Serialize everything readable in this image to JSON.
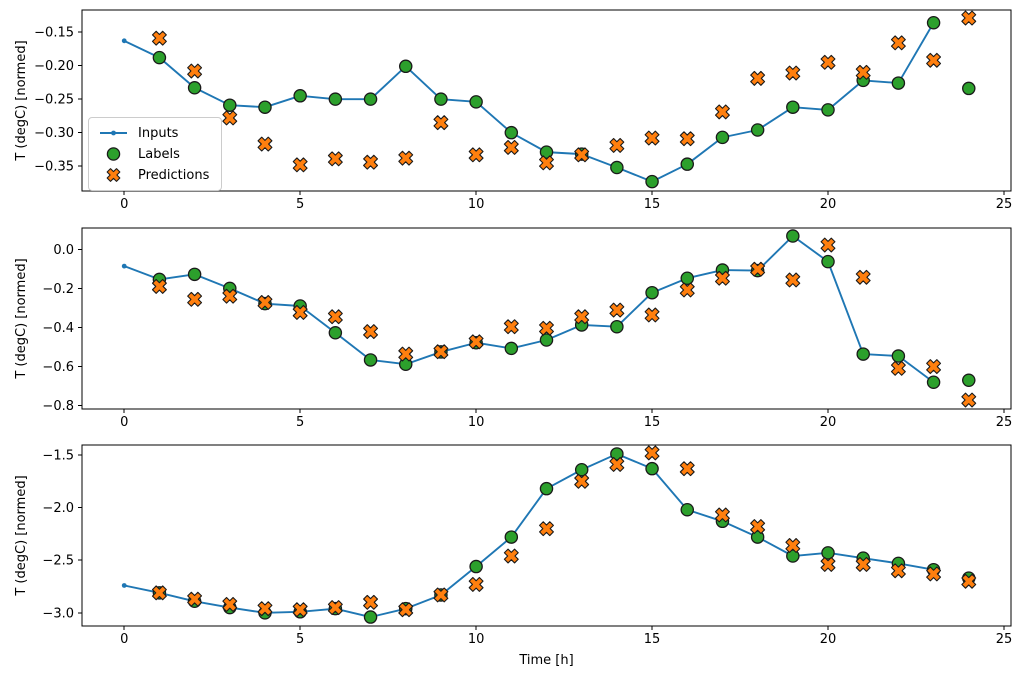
{
  "figure": {
    "background": "#ffffff",
    "xlabel": "Time [h]",
    "ylabel": "T (degC) [normed]"
  },
  "colors": {
    "inputs_line": "#1f77b4",
    "labels_marker": "#2ca02c",
    "predictions_marker": "#ff7f0e",
    "marker_edge": "#1a1a1a",
    "axis": "#000000",
    "text": "#000000",
    "legend_border": "#cccccc"
  },
  "legend": {
    "position": "center-left of subplot 1",
    "items": [
      {
        "label": "Inputs",
        "marker": "line-with-dot-icon"
      },
      {
        "label": "Labels",
        "marker": "green-circle-icon"
      },
      {
        "label": "Predictions",
        "marker": "orange-x-icon"
      }
    ]
  },
  "chart_data": [
    {
      "type": "line",
      "title": "",
      "xlabel": "",
      "ylabel": "T (degC) [normed]",
      "grid": false,
      "xlim": [
        -1.2,
        25.2
      ],
      "ylim": [
        -0.387,
        -0.117
      ],
      "xticks": [
        0,
        5,
        10,
        15,
        20,
        25
      ],
      "xtick_labels": [
        "0",
        "5",
        "10",
        "15",
        "20",
        "25"
      ],
      "yticks": [
        -0.15,
        -0.2,
        -0.25,
        -0.3,
        -0.35
      ],
      "ytick_labels": [
        "−0.15",
        "−0.20",
        "−0.25",
        "−0.30",
        "−0.35"
      ],
      "series": [
        {
          "name": "Inputs",
          "type": "line",
          "marker": "dot",
          "x": [
            0,
            1,
            2,
            3,
            4,
            5,
            6,
            7,
            8,
            9,
            10,
            11,
            12,
            13,
            14,
            15,
            16,
            17,
            18,
            19,
            20,
            21,
            22,
            23
          ],
          "y": [
            -0.163,
            -0.188,
            -0.233,
            -0.259,
            -0.262,
            -0.245,
            -0.25,
            -0.25,
            -0.201,
            -0.25,
            -0.254,
            -0.3,
            -0.329,
            -0.332,
            -0.352,
            -0.373,
            -0.347,
            -0.307,
            -0.296,
            -0.262,
            -0.266,
            -0.222,
            -0.226,
            -0.136
          ]
        },
        {
          "name": "Labels",
          "type": "scatter",
          "marker": "circle",
          "x": [
            1,
            2,
            3,
            4,
            5,
            6,
            7,
            8,
            9,
            10,
            11,
            12,
            13,
            14,
            15,
            16,
            17,
            18,
            19,
            20,
            21,
            22,
            23,
            24
          ],
          "y": [
            -0.188,
            -0.233,
            -0.259,
            -0.262,
            -0.245,
            -0.25,
            -0.25,
            -0.201,
            -0.25,
            -0.254,
            -0.3,
            -0.329,
            -0.332,
            -0.352,
            -0.373,
            -0.347,
            -0.307,
            -0.296,
            -0.262,
            -0.266,
            -0.222,
            -0.226,
            -0.136,
            -0.234
          ]
        },
        {
          "name": "Predictions",
          "type": "scatter",
          "marker": "X",
          "x": [
            1,
            2,
            3,
            4,
            5,
            6,
            7,
            8,
            9,
            10,
            11,
            12,
            13,
            14,
            15,
            16,
            17,
            18,
            19,
            20,
            21,
            22,
            23,
            24
          ],
          "y": [
            -0.159,
            -0.208,
            -0.278,
            -0.317,
            -0.348,
            -0.339,
            -0.344,
            -0.338,
            -0.285,
            -0.333,
            -0.322,
            -0.345,
            -0.333,
            -0.319,
            -0.308,
            -0.309,
            -0.269,
            -0.219,
            -0.211,
            -0.195,
            -0.21,
            -0.166,
            -0.192,
            -0.129
          ]
        }
      ]
    },
    {
      "type": "line",
      "title": "",
      "xlabel": "",
      "ylabel": "T (degC) [normed]",
      "grid": false,
      "xlim": [
        -1.2,
        25.2
      ],
      "ylim": [
        -0.817,
        0.109
      ],
      "xticks": [
        0,
        5,
        10,
        15,
        20,
        25
      ],
      "xtick_labels": [
        "0",
        "5",
        "10",
        "15",
        "20",
        "25"
      ],
      "yticks": [
        0.0,
        -0.2,
        -0.4,
        -0.6,
        -0.8
      ],
      "ytick_labels": [
        "0.0",
        "−0.2",
        "−0.4",
        "−0.6",
        "−0.8"
      ],
      "series": [
        {
          "name": "Inputs",
          "type": "line",
          "marker": "dot",
          "x": [
            0,
            1,
            2,
            3,
            4,
            5,
            6,
            7,
            8,
            9,
            10,
            11,
            12,
            13,
            14,
            15,
            16,
            17,
            18,
            19,
            20,
            21,
            22,
            23
          ],
          "y": [
            -0.086,
            -0.154,
            -0.128,
            -0.2,
            -0.278,
            -0.29,
            -0.427,
            -0.566,
            -0.588,
            -0.525,
            -0.478,
            -0.507,
            -0.464,
            -0.387,
            -0.396,
            -0.222,
            -0.148,
            -0.106,
            -0.109,
            0.068,
            -0.063,
            -0.536,
            -0.546,
            -0.68
          ]
        },
        {
          "name": "Labels",
          "type": "scatter",
          "marker": "circle",
          "x": [
            1,
            2,
            3,
            4,
            5,
            6,
            7,
            8,
            9,
            10,
            11,
            12,
            13,
            14,
            15,
            16,
            17,
            18,
            19,
            20,
            21,
            22,
            23,
            24
          ],
          "y": [
            -0.154,
            -0.128,
            -0.2,
            -0.278,
            -0.29,
            -0.427,
            -0.566,
            -0.588,
            -0.525,
            -0.478,
            -0.507,
            -0.464,
            -0.387,
            -0.396,
            -0.222,
            -0.148,
            -0.106,
            -0.109,
            0.068,
            -0.063,
            -0.536,
            -0.546,
            -0.68,
            -0.67
          ]
        },
        {
          "name": "Predictions",
          "type": "scatter",
          "marker": "X",
          "x": [
            1,
            2,
            3,
            4,
            5,
            6,
            7,
            8,
            9,
            10,
            11,
            12,
            13,
            14,
            15,
            16,
            17,
            18,
            19,
            20,
            21,
            22,
            23,
            24
          ],
          "y": [
            -0.19,
            -0.256,
            -0.24,
            -0.272,
            -0.323,
            -0.345,
            -0.421,
            -0.536,
            -0.524,
            -0.473,
            -0.396,
            -0.404,
            -0.345,
            -0.311,
            -0.336,
            -0.208,
            -0.148,
            -0.102,
            -0.157,
            0.022,
            -0.143,
            -0.609,
            -0.6,
            -0.771
          ]
        }
      ]
    },
    {
      "type": "line",
      "title": "",
      "xlabel": "Time [h]",
      "ylabel": "T (degC) [normed]",
      "grid": false,
      "xlim": [
        -1.2,
        25.2
      ],
      "ylim": [
        -3.125,
        -1.405
      ],
      "xticks": [
        0,
        5,
        10,
        15,
        20,
        25
      ],
      "xtick_labels": [
        "0",
        "5",
        "10",
        "15",
        "20",
        "25"
      ],
      "yticks": [
        -1.5,
        -2.0,
        -2.5,
        -3.0
      ],
      "ytick_labels": [
        "−1.5",
        "−2.0",
        "−2.5",
        "−3.0"
      ],
      "series": [
        {
          "name": "Inputs",
          "type": "line",
          "marker": "dot",
          "x": [
            0,
            1,
            2,
            3,
            4,
            5,
            6,
            7,
            8,
            9,
            10,
            11,
            12,
            13,
            14,
            15,
            16,
            17,
            18,
            19,
            20,
            21,
            22,
            23
          ],
          "y": [
            -2.74,
            -2.81,
            -2.89,
            -2.95,
            -3.0,
            -2.99,
            -2.96,
            -3.04,
            -2.96,
            -2.83,
            -2.56,
            -2.28,
            -1.82,
            -1.64,
            -1.49,
            -1.63,
            -2.02,
            -2.13,
            -2.28,
            -2.46,
            -2.43,
            -2.48,
            -2.53,
            -2.59
          ]
        },
        {
          "name": "Labels",
          "type": "scatter",
          "marker": "circle",
          "x": [
            1,
            2,
            3,
            4,
            5,
            6,
            7,
            8,
            9,
            10,
            11,
            12,
            13,
            14,
            15,
            16,
            17,
            18,
            19,
            20,
            21,
            22,
            23,
            24
          ],
          "y": [
            -2.81,
            -2.89,
            -2.95,
            -3.0,
            -2.99,
            -2.96,
            -3.04,
            -2.96,
            -2.83,
            -2.56,
            -2.28,
            -1.82,
            -1.64,
            -1.49,
            -1.63,
            -2.02,
            -2.13,
            -2.28,
            -2.46,
            -2.43,
            -2.48,
            -2.53,
            -2.59,
            -2.67
          ]
        },
        {
          "name": "Predictions",
          "type": "scatter",
          "marker": "X",
          "x": [
            1,
            2,
            3,
            4,
            5,
            6,
            7,
            8,
            9,
            10,
            11,
            12,
            13,
            14,
            15,
            16,
            17,
            18,
            19,
            20,
            21,
            22,
            23,
            24
          ],
          "y": [
            -2.81,
            -2.87,
            -2.92,
            -2.96,
            -2.97,
            -2.95,
            -2.9,
            -2.97,
            -2.83,
            -2.73,
            -2.46,
            -2.2,
            -1.75,
            -1.59,
            -1.48,
            -1.63,
            -2.07,
            -2.18,
            -2.36,
            -2.54,
            -2.54,
            -2.6,
            -2.63,
            -2.7
          ]
        }
      ]
    }
  ]
}
